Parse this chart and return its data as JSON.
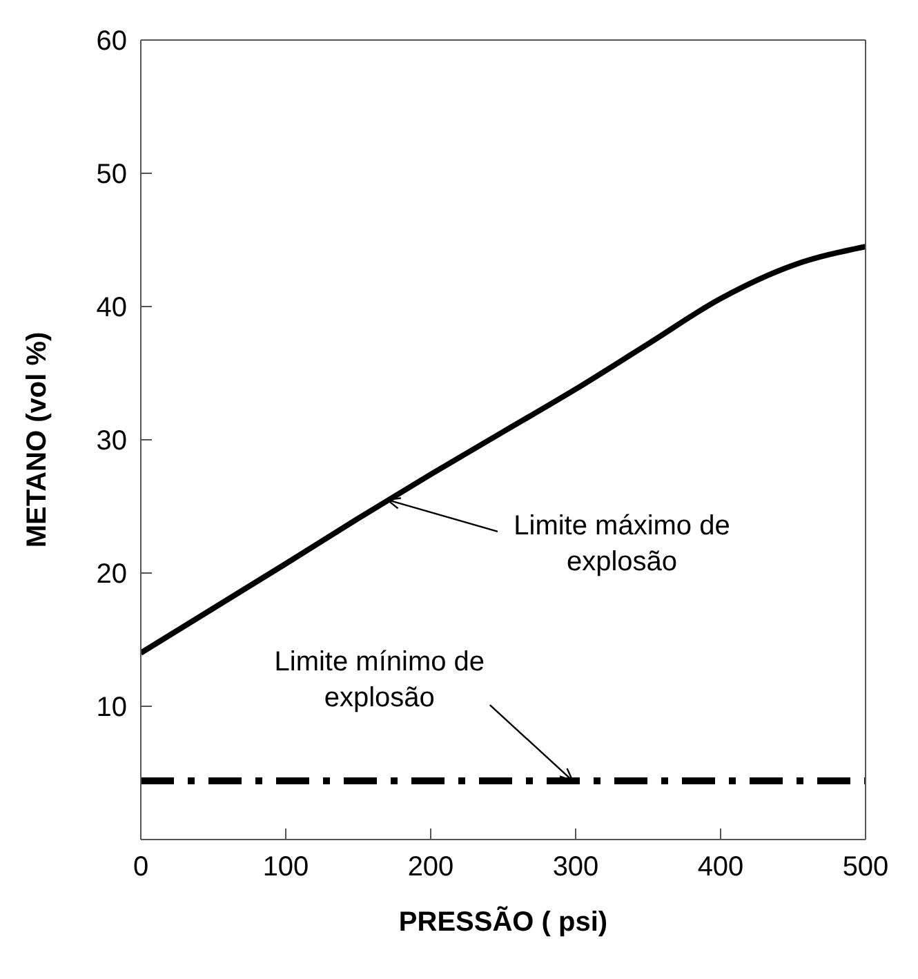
{
  "chart_data": {
    "type": "line",
    "xlabel": "PRESSÃO ( psi)",
    "ylabel": "METANO  (vol %)",
    "x": [
      0,
      100,
      150,
      200,
      250,
      300,
      350,
      400,
      450,
      500
    ],
    "series": [
      {
        "color": "#000000",
        "values": [
          14,
          20.7,
          24.1,
          27.4,
          30.6,
          33.8,
          37.2,
          40.6,
          43.1,
          44.5
        ]
      }
    ],
    "xlim": [
      0,
      500
    ],
    "xticks": [
      0,
      100,
      200,
      300,
      400,
      500
    ],
    "ylim": [
      0,
      60
    ],
    "yticks": [
      10,
      20,
      30,
      40,
      50,
      60
    ],
    "grid": false,
    "legend": false,
    "marker": "none",
    "line_style": "solid",
    "ref_lines": [
      {
        "axis": "y",
        "value": 4.4,
        "color": "#000000",
        "line_style": "dashed"
      }
    ],
    "annotations": [
      {
        "text": "Limite máximo de explosão",
        "x": 170,
        "y": 25.5
      },
      {
        "text": "Limite mínimo de explosão",
        "x": 298,
        "y": 4.4
      }
    ]
  }
}
